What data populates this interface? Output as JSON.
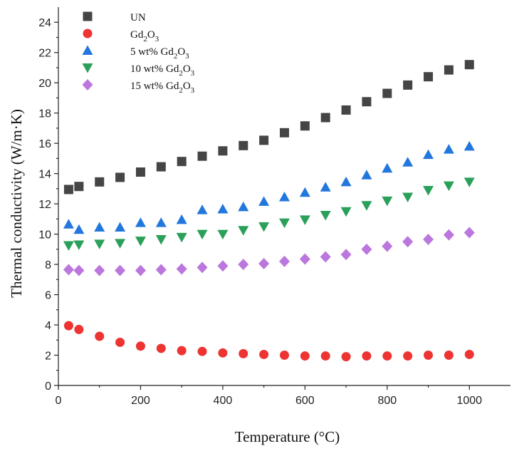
{
  "chart_data": {
    "type": "scatter",
    "xlabel": "Temperature (°C)",
    "ylabel": "Thermal conductivity (W/m·K)",
    "xlim": [
      0,
      1100
    ],
    "ylim": [
      0,
      25
    ],
    "xticks": [
      0,
      200,
      400,
      600,
      800,
      1000
    ],
    "yticks": [
      0,
      2,
      4,
      6,
      8,
      10,
      12,
      14,
      16,
      18,
      20,
      22,
      24
    ],
    "grid": false,
    "legend_position": "top-left",
    "x": [
      25,
      50,
      100,
      150,
      200,
      250,
      300,
      350,
      400,
      450,
      500,
      550,
      600,
      650,
      700,
      750,
      800,
      850,
      900,
      950,
      1000
    ],
    "series": [
      {
        "name": "UN",
        "legend": {
          "base": "UN",
          "sub": "",
          "tail": ""
        },
        "marker": "square",
        "color": "#454545",
        "values": [
          12.95,
          13.15,
          13.45,
          13.75,
          14.1,
          14.45,
          14.8,
          15.15,
          15.5,
          15.85,
          16.2,
          16.7,
          17.15,
          17.7,
          18.2,
          18.75,
          19.3,
          19.85,
          20.4,
          20.85,
          21.2
        ]
      },
      {
        "name": "Gd2O3",
        "legend": {
          "base": "Gd",
          "sub": "2",
          "tail": "O",
          "sub2": "3"
        },
        "marker": "circle",
        "color": "#ee3333",
        "values": [
          3.95,
          3.7,
          3.25,
          2.85,
          2.6,
          2.45,
          2.3,
          2.25,
          2.15,
          2.1,
          2.05,
          2.0,
          1.95,
          1.95,
          1.9,
          1.95,
          1.95,
          1.95,
          2.0,
          2.0,
          2.05
        ]
      },
      {
        "name": "5 wt% Gd2O3",
        "legend": {
          "base": "5 wt% Gd",
          "sub": "2",
          "tail": "O",
          "sub2": "3"
        },
        "marker": "triangle-up",
        "color": "#2277dd",
        "values": [
          10.65,
          10.3,
          10.45,
          10.45,
          10.75,
          10.75,
          10.95,
          11.6,
          11.65,
          11.8,
          12.15,
          12.45,
          12.75,
          13.1,
          13.45,
          13.9,
          14.35,
          14.75,
          15.25,
          15.6,
          15.8
        ]
      },
      {
        "name": "10 wt% Gd2O3",
        "legend": {
          "base": "10 wt% Gd",
          "sub": "2",
          "tail": "O",
          "sub2": "3"
        },
        "marker": "triangle-down",
        "color": "#2aa05a",
        "values": [
          9.25,
          9.3,
          9.35,
          9.4,
          9.55,
          9.65,
          9.8,
          10.0,
          10.0,
          10.25,
          10.5,
          10.75,
          10.95,
          11.25,
          11.5,
          11.9,
          12.2,
          12.45,
          12.9,
          13.2,
          13.45
        ]
      },
      {
        "name": "15 wt% Gd2O3",
        "legend": {
          "base": "15 wt% Gd",
          "sub": "2",
          "tail": "O",
          "sub2": "3"
        },
        "marker": "diamond",
        "color": "#bb77dd",
        "values": [
          7.65,
          7.6,
          7.6,
          7.6,
          7.6,
          7.65,
          7.7,
          7.8,
          7.9,
          8.0,
          8.05,
          8.2,
          8.35,
          8.5,
          8.65,
          9.0,
          9.2,
          9.5,
          9.65,
          9.95,
          10.1
        ]
      }
    ]
  }
}
